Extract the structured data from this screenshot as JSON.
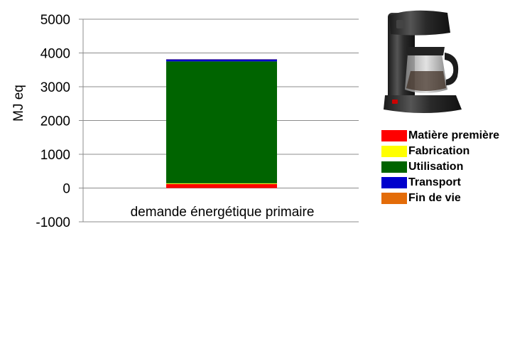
{
  "chart_data": {
    "type": "bar",
    "stacked": true,
    "categories": [
      "demande énergétique primaire"
    ],
    "series": [
      {
        "name": "Matière première",
        "values": [
          120
        ],
        "color": "#ff0000"
      },
      {
        "name": "Fabrication",
        "values": [
          20
        ],
        "color": "#ffff00"
      },
      {
        "name": "Utilisation",
        "values": [
          3610
        ],
        "color": "#006400"
      },
      {
        "name": "Transport",
        "values": [
          60
        ],
        "color": "#0000cc"
      },
      {
        "name": "Fin de vie",
        "values": [
          5
        ],
        "color": "#e36c09"
      }
    ],
    "ylabel": "MJ eq",
    "ylim": [
      -1000,
      5000
    ],
    "yticks": [
      5000,
      4000,
      3000,
      2000,
      1000,
      0,
      -1000
    ],
    "grid": true,
    "legend_position": "right"
  },
  "image": {
    "subject": "coffee-maker"
  }
}
